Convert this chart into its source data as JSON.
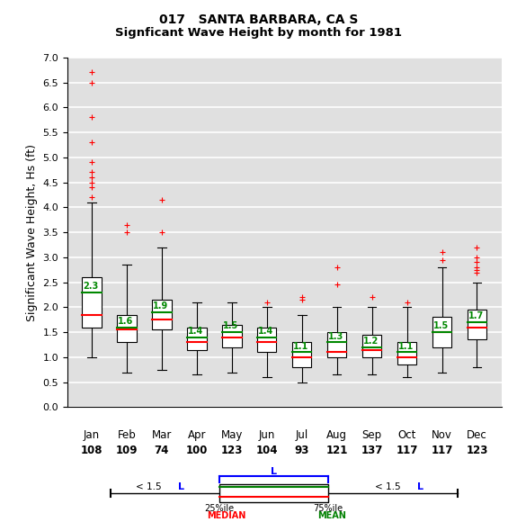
{
  "title_line1": "017   SANTA BARBARA, CA S",
  "title_line2": "Signficant Wave Height by month for 1981",
  "ylabel": "Significant Wave Height, Hs (ft)",
  "ylim": [
    0.0,
    7.0
  ],
  "yticks": [
    0.0,
    0.5,
    1.0,
    1.5,
    2.0,
    2.5,
    3.0,
    3.5,
    4.0,
    4.5,
    5.0,
    5.5,
    6.0,
    6.5,
    7.0
  ],
  "months": [
    "Jan",
    "Feb",
    "Mar",
    "Apr",
    "May",
    "Jun",
    "Jul",
    "Aug",
    "Sep",
    "Oct",
    "Nov",
    "Dec"
  ],
  "counts": [
    108,
    109,
    74,
    100,
    123,
    104,
    93,
    121,
    137,
    117,
    117,
    123
  ],
  "boxes": [
    {
      "q1": 1.6,
      "median": 1.85,
      "q3": 2.6,
      "mean": 2.3,
      "whislo": 1.0,
      "whishi": 4.1,
      "fliers": [
        6.7,
        6.5,
        5.8,
        5.3,
        4.9,
        4.7,
        4.6,
        4.5,
        4.4,
        4.2
      ]
    },
    {
      "q1": 1.3,
      "median": 1.55,
      "q3": 1.85,
      "mean": 1.6,
      "whislo": 0.7,
      "whishi": 2.85,
      "fliers": [
        3.65,
        3.5
      ]
    },
    {
      "q1": 1.55,
      "median": 1.75,
      "q3": 2.15,
      "mean": 1.9,
      "whislo": 0.75,
      "whishi": 3.2,
      "fliers": [
        4.15,
        3.5
      ]
    },
    {
      "q1": 1.15,
      "median": 1.3,
      "q3": 1.6,
      "mean": 1.4,
      "whislo": 0.65,
      "whishi": 2.1,
      "fliers": []
    },
    {
      "q1": 1.2,
      "median": 1.4,
      "q3": 1.65,
      "mean": 1.5,
      "whislo": 0.7,
      "whishi": 2.1,
      "fliers": []
    },
    {
      "q1": 1.1,
      "median": 1.3,
      "q3": 1.6,
      "mean": 1.4,
      "whislo": 0.6,
      "whishi": 2.0,
      "fliers": [
        2.1
      ]
    },
    {
      "q1": 0.8,
      "median": 1.0,
      "q3": 1.3,
      "mean": 1.1,
      "whislo": 0.5,
      "whishi": 1.85,
      "fliers": [
        2.2,
        2.15
      ]
    },
    {
      "q1": 1.0,
      "median": 1.1,
      "q3": 1.5,
      "mean": 1.3,
      "whislo": 0.65,
      "whishi": 2.0,
      "fliers": [
        2.8,
        2.45
      ]
    },
    {
      "q1": 1.0,
      "median": 1.15,
      "q3": 1.45,
      "mean": 1.2,
      "whislo": 0.65,
      "whishi": 2.0,
      "fliers": [
        2.2
      ]
    },
    {
      "q1": 0.85,
      "median": 1.0,
      "q3": 1.3,
      "mean": 1.1,
      "whislo": 0.6,
      "whishi": 2.0,
      "fliers": [
        2.1
      ]
    },
    {
      "q1": 1.2,
      "median": 1.5,
      "q3": 1.8,
      "mean": 1.5,
      "whislo": 0.7,
      "whishi": 2.8,
      "fliers": [
        3.1,
        2.95
      ]
    },
    {
      "q1": 1.35,
      "median": 1.6,
      "q3": 1.95,
      "mean": 1.7,
      "whislo": 0.8,
      "whishi": 2.5,
      "fliers": [
        3.2,
        3.0,
        2.9,
        2.8,
        2.75,
        2.7
      ]
    }
  ],
  "box_facecolor": "#ffffff",
  "median_color": "#ff0000",
  "mean_color": "#008800",
  "whisker_color": "#000000",
  "flier_color": "#ff0000",
  "plot_bg": "#e0e0e0",
  "grid_color": "#ffffff"
}
